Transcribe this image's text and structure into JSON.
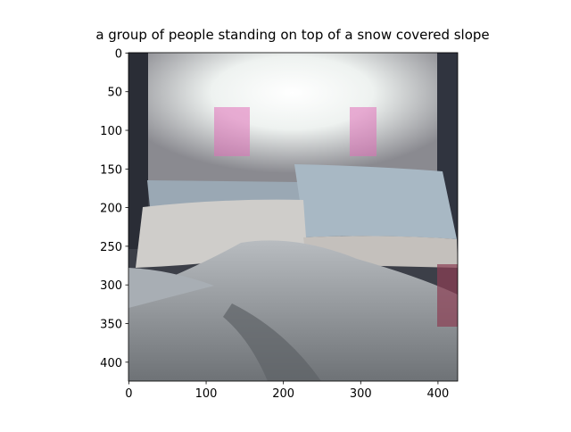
{
  "chart_data": {
    "type": "image",
    "title": "a group of people standing on top of a snow covered slope",
    "xlim": [
      -0.5,
      425.5
    ],
    "ylim": [
      424.5,
      -0.5
    ],
    "xticks": [
      0,
      100,
      200,
      300,
      400
    ],
    "yticks": [
      0,
      50,
      100,
      150,
      200,
      250,
      300,
      350,
      400
    ]
  }
}
